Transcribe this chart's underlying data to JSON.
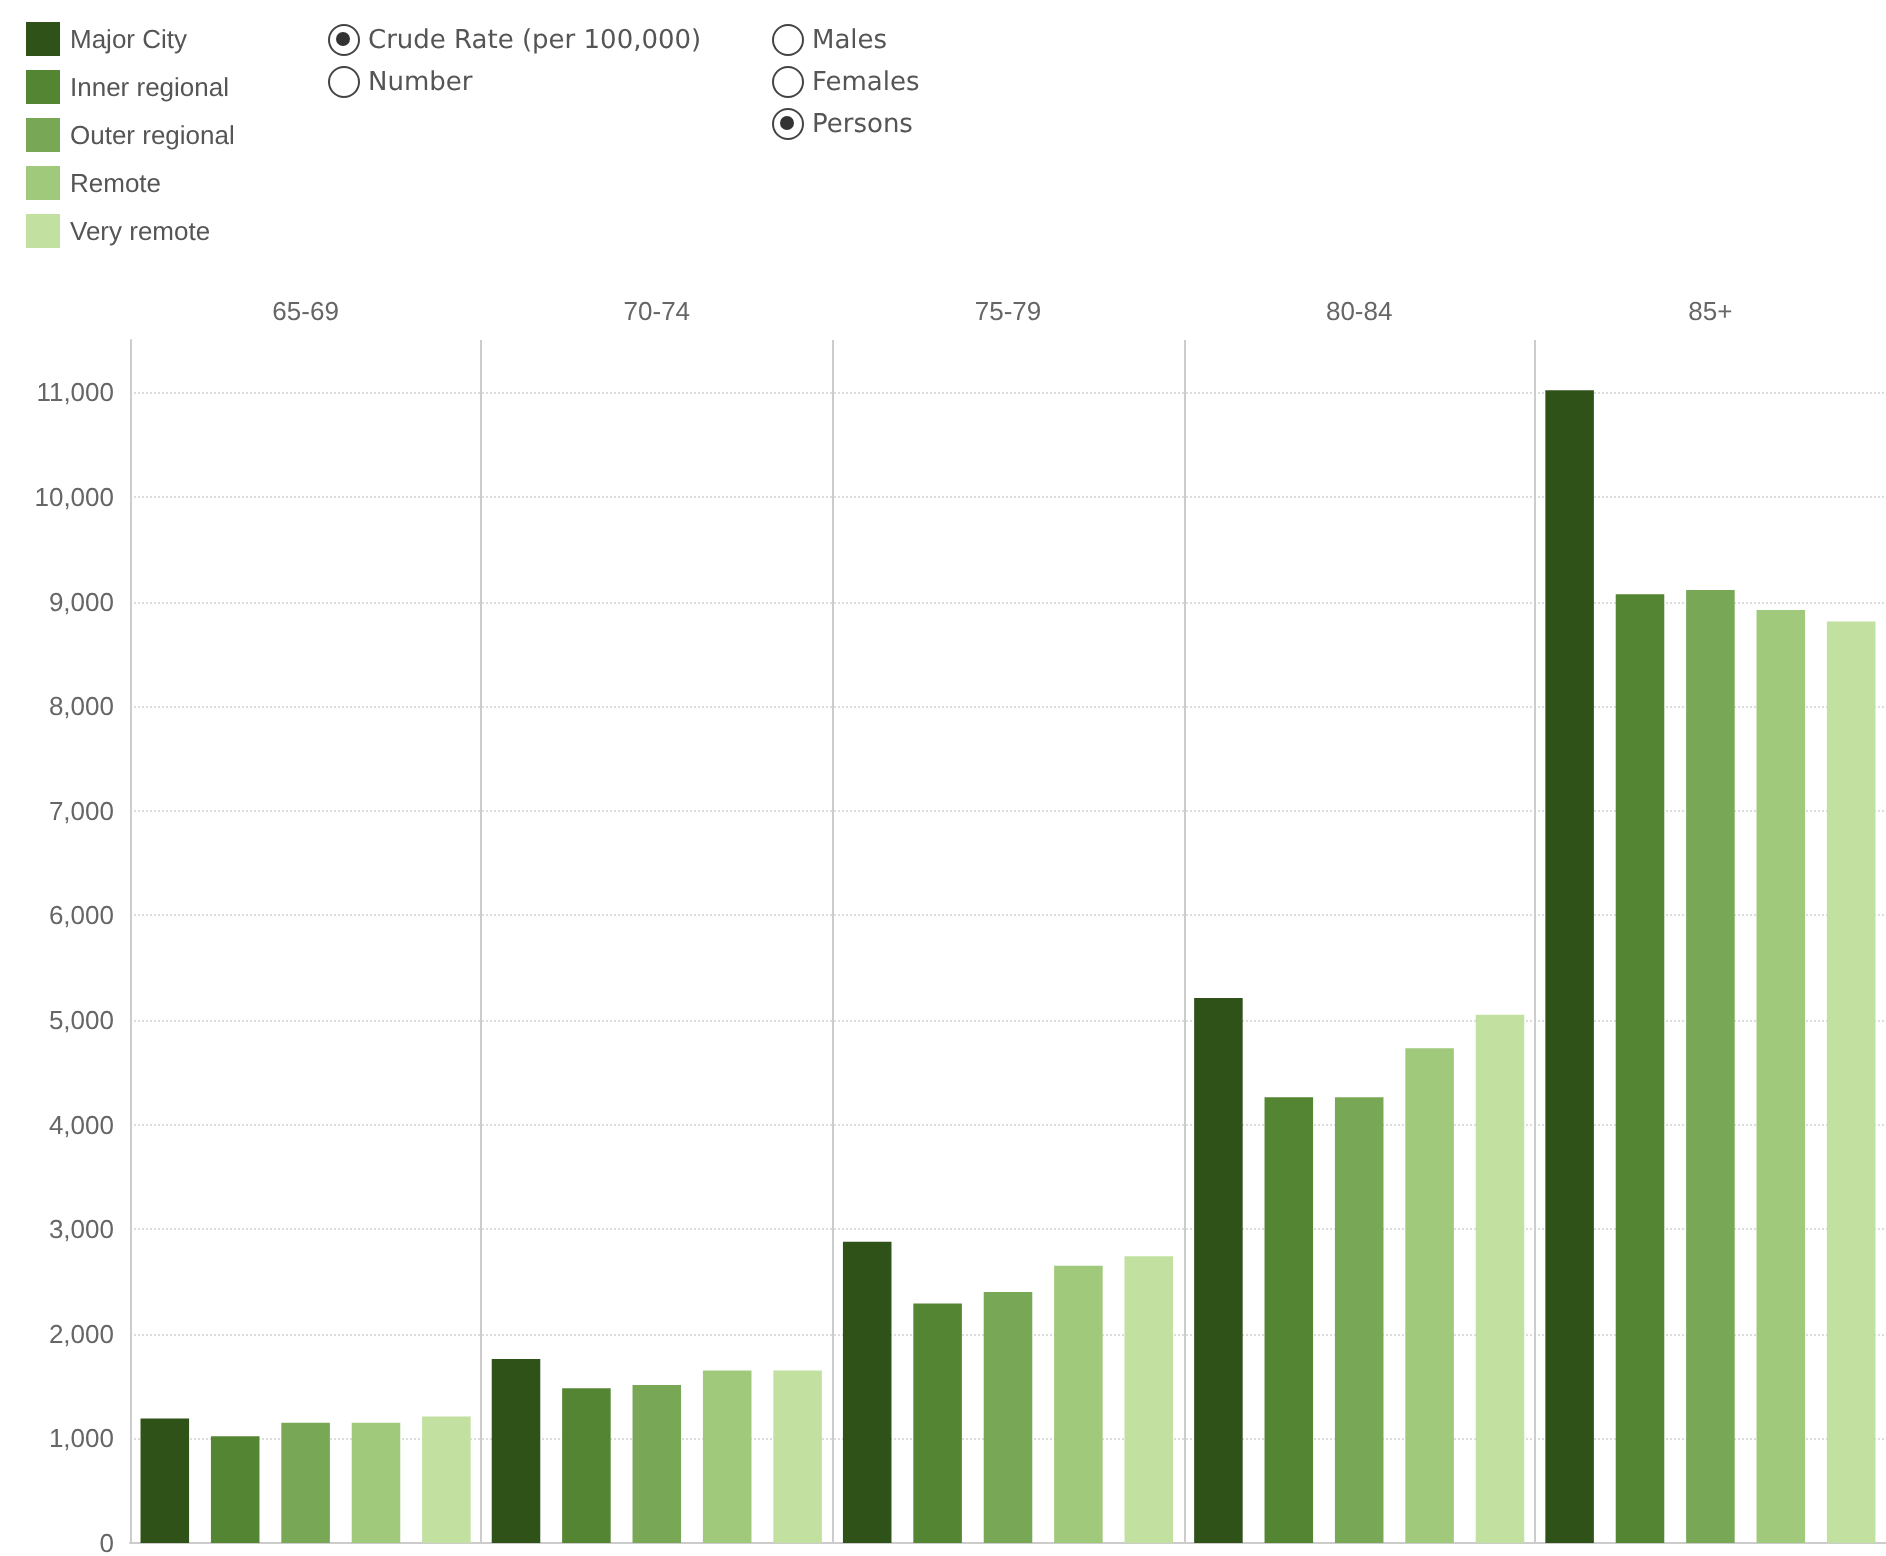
{
  "chart_data": {
    "type": "bar",
    "categories": [
      "65-69",
      "70-74",
      "75-79",
      "80-84",
      "85+"
    ],
    "series": [
      {
        "name": "Major City",
        "color": "#2f5219",
        "values": [
          1190,
          1760,
          2880,
          5210,
          11020
        ]
      },
      {
        "name": "Inner regional",
        "color": "#548533",
        "values": [
          1020,
          1480,
          2290,
          4260,
          9070
        ]
      },
      {
        "name": "Outer regional",
        "color": "#78a856",
        "values": [
          1150,
          1510,
          2400,
          4260,
          9110
        ]
      },
      {
        "name": "Remote",
        "color": "#a1c97c",
        "values": [
          1150,
          1650,
          2650,
          4730,
          8920
        ]
      },
      {
        "name": "Very remote",
        "color": "#c2e0a0",
        "values": [
          1210,
          1650,
          2740,
          5050,
          8810
        ]
      }
    ],
    "ylim": [
      0,
      11500
    ],
    "yticks": [
      0,
      {
        "value": 1000,
        "label": "1,000"
      },
      {
        "value": 2000,
        "label": "2,000"
      },
      {
        "value": 3000,
        "label": "3,000"
      },
      {
        "value": 4000,
        "label": "4,000"
      },
      {
        "value": 5000,
        "label": "5,000"
      },
      {
        "value": 6000,
        "label": "6,000"
      },
      {
        "value": 7000,
        "label": "7,000"
      },
      {
        "value": 8000,
        "label": "8,000"
      },
      {
        "value": 9000,
        "label": "9,000"
      },
      {
        "value": 10000,
        "label": "10,000"
      },
      {
        "value": 11000,
        "label": "11,000"
      }
    ],
    "grid": true,
    "legend": "top left",
    "annotations": [
      "Crude Rate (per 100,000)",
      "Number",
      "Males",
      "Females",
      "Persons"
    ]
  }
}
